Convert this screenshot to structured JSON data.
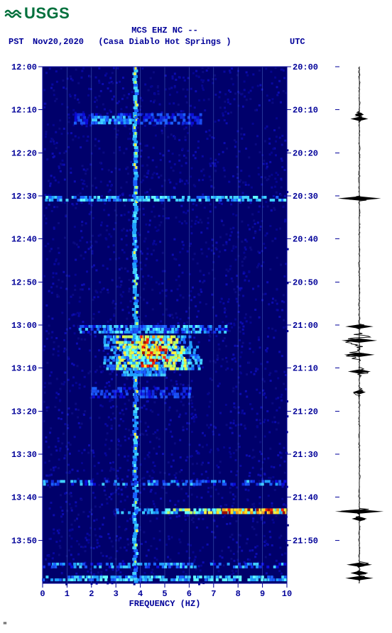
{
  "logo": {
    "text": "USGS"
  },
  "header": {
    "station_line": "MCS EHZ NC --",
    "left_label": "PST",
    "date": "Nov20,2020",
    "site": "(Casa Diablo Hot Springs )",
    "right_label": "UTC"
  },
  "spectrogram": {
    "type": "spectrogram",
    "xlim": [
      0,
      10
    ],
    "xtick_step": 1,
    "xlabel": "FREQUENCY (HZ)",
    "y_pst_ticks": [
      {
        "t": 0.0,
        "label": "12:00"
      },
      {
        "t": 0.083,
        "label": "12:10"
      },
      {
        "t": 0.167,
        "label": "12:20"
      },
      {
        "t": 0.25,
        "label": "12:30"
      },
      {
        "t": 0.333,
        "label": "12:40"
      },
      {
        "t": 0.417,
        "label": "12:50"
      },
      {
        "t": 0.5,
        "label": "13:00"
      },
      {
        "t": 0.583,
        "label": "13:10"
      },
      {
        "t": 0.667,
        "label": "13:20"
      },
      {
        "t": 0.75,
        "label": "13:30"
      },
      {
        "t": 0.833,
        "label": "13:40"
      },
      {
        "t": 0.917,
        "label": "13:50"
      }
    ],
    "y_utc_ticks": [
      {
        "t": 0.0,
        "label": "20:00"
      },
      {
        "t": 0.083,
        "label": "20:10"
      },
      {
        "t": 0.167,
        "label": "20:20"
      },
      {
        "t": 0.25,
        "label": "20:30"
      },
      {
        "t": 0.333,
        "label": "20:40"
      },
      {
        "t": 0.417,
        "label": "20:50"
      },
      {
        "t": 0.5,
        "label": "21:00"
      },
      {
        "t": 0.583,
        "label": "21:10"
      },
      {
        "t": 0.667,
        "label": "21:20"
      },
      {
        "t": 0.75,
        "label": "21:30"
      },
      {
        "t": 0.833,
        "label": "21:40"
      },
      {
        "t": 0.917,
        "label": "21:50"
      }
    ],
    "background_color": "#00006b",
    "grid_color": "#7fb6ff",
    "label_color": "#000099",
    "label_fontsize": 12,
    "persistent_line_freq": 3.8,
    "events": [
      {
        "t": 0.09,
        "flo": 1.3,
        "fhi": 6.5,
        "intensity": "low"
      },
      {
        "t": 0.095,
        "flo": 2.0,
        "fhi": 3.8,
        "intensity": "med"
      },
      {
        "t": 0.25,
        "flo": 0.0,
        "fhi": 10.0,
        "intensity": "med_narrow"
      },
      {
        "t": 0.5,
        "flo": 1.5,
        "fhi": 7.5,
        "intensity": "high_start"
      },
      {
        "t": 0.52,
        "flo": 3.0,
        "fhi": 5.5,
        "intensity": "peak"
      },
      {
        "t": 0.54,
        "flo": 3.3,
        "fhi": 5.8,
        "intensity": "peak2"
      },
      {
        "t": 0.56,
        "flo": 3.0,
        "fhi": 6.0,
        "intensity": "peak"
      },
      {
        "t": 0.583,
        "flo": 3.2,
        "fhi": 5.0,
        "intensity": "med"
      },
      {
        "t": 0.62,
        "flo": 2.0,
        "fhi": 6.0,
        "intensity": "low"
      },
      {
        "t": 0.8,
        "flo": 0.0,
        "fhi": 10.0,
        "intensity": "low_band"
      },
      {
        "t": 0.855,
        "flo": 5.0,
        "fhi": 10.0,
        "intensity": "hot"
      },
      {
        "t": 0.96,
        "flo": 0.0,
        "fhi": 10.0,
        "intensity": "low_band"
      },
      {
        "t": 0.985,
        "flo": 0.0,
        "fhi": 10.0,
        "intensity": "med_narrow"
      }
    ],
    "colors": {
      "low": [
        "#0b0bd8",
        "#102ae0",
        "#1a4ef0"
      ],
      "med": [
        "#1a60ff",
        "#20a0ff",
        "#40d0ff"
      ],
      "high": [
        "#60ffff",
        "#c0ff60",
        "#fff040"
      ],
      "hot": [
        "#ffe020",
        "#ff9a10",
        "#ff2000",
        "#a01000"
      ]
    }
  },
  "seismogram": {
    "type": "waveform",
    "trace_color": "#000000",
    "baseline_x": 0.5,
    "bursts": [
      {
        "t": 0.085,
        "amp": 0.18,
        "dur": 0.015
      },
      {
        "t": 0.095,
        "amp": 0.35,
        "dur": 0.012
      },
      {
        "t": 0.25,
        "amp": 0.85,
        "dur": 0.01
      },
      {
        "t": 0.498,
        "amp": 0.55,
        "dur": 0.01
      },
      {
        "t": 0.515,
        "amp": 0.7,
        "dur": 0.03
      },
      {
        "t": 0.545,
        "amp": 0.6,
        "dur": 0.025
      },
      {
        "t": 0.58,
        "amp": 0.45,
        "dur": 0.02
      },
      {
        "t": 0.62,
        "amp": 0.25,
        "dur": 0.02
      },
      {
        "t": 0.855,
        "amp": 0.95,
        "dur": 0.012
      },
      {
        "t": 0.87,
        "amp": 0.3,
        "dur": 0.01
      },
      {
        "t": 0.958,
        "amp": 0.5,
        "dur": 0.012
      },
      {
        "t": 0.975,
        "amp": 0.35,
        "dur": 0.01
      },
      {
        "t": 0.985,
        "amp": 0.55,
        "dur": 0.01
      }
    ]
  },
  "footnote": "\""
}
